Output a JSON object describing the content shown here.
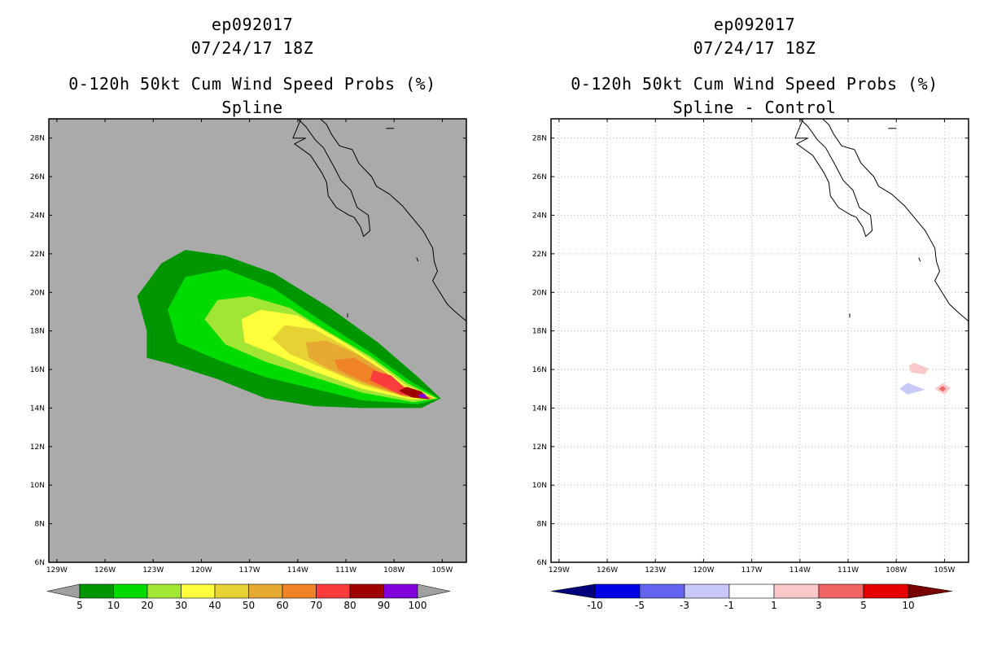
{
  "left": {
    "title1": "ep092017",
    "title2": "07/24/17 18Z",
    "title3": "0-120h 50kt Cum Wind Speed Probs (%)",
    "title4": "Spline"
  },
  "right": {
    "title1": "ep092017",
    "title2": "07/24/17 18Z",
    "title3": "0-120h 50kt Cum Wind Speed Probs (%)",
    "title4": "Spline - Control"
  },
  "colors": {
    "background_left": "#aaaaaa",
    "background_right": "#ffffff",
    "coast": "#000000"
  },
  "chart_data": [
    {
      "type": "heatmap",
      "title": "0-120h 50kt Cum Wind Speed Probs (%) — Spline",
      "x_ticks": [
        "129W",
        "126W",
        "123W",
        "120W",
        "117W",
        "114W",
        "111W",
        "108W",
        "105W"
      ],
      "x_tick_values": [
        -129,
        -126,
        -123,
        -120,
        -117,
        -114,
        -111,
        -108,
        -105
      ],
      "y_ticks": [
        "6N",
        "8N",
        "10N",
        "12N",
        "14N",
        "16N",
        "18N",
        "20N",
        "22N",
        "24N",
        "26N",
        "28N"
      ],
      "y_tick_values": [
        6,
        8,
        10,
        12,
        14,
        16,
        18,
        20,
        22,
        24,
        26,
        28
      ],
      "xlim": [
        -129.5,
        -103.5
      ],
      "ylim": [
        6,
        29
      ],
      "grid": false,
      "legend_levels": [
        "5",
        "10",
        "20",
        "30",
        "40",
        "50",
        "60",
        "70",
        "80",
        "90",
        "100"
      ],
      "legend_colors": [
        "#a0a0a0",
        "#009600",
        "#00dc00",
        "#a0e632",
        "#ffff3c",
        "#e6d232",
        "#e6aa32",
        "#f08228",
        "#fa3c3c",
        "#a00000",
        "#8200dc",
        "#a0a0a0"
      ],
      "swath_axis": [
        {
          "lon": -106.0,
          "lat": 14.6
        },
        {
          "lon": -109.0,
          "lat": 15.7
        },
        {
          "lon": -112.0,
          "lat": 16.9
        },
        {
          "lon": -115.0,
          "lat": 18.1
        },
        {
          "lon": -118.0,
          "lat": 18.9
        },
        {
          "lon": -121.5,
          "lat": 19.4
        }
      ],
      "contours": [
        {
          "level": 5,
          "color": "#009600",
          "poly": [
            [
              -105.1,
              14.5
            ],
            [
              -106.3,
              14.0
            ],
            [
              -110,
              14.0
            ],
            [
              -113,
              14.1
            ],
            [
              -116,
              14.5
            ],
            [
              -119,
              15.5
            ],
            [
              -122,
              16.3
            ],
            [
              -123.4,
              16.6
            ],
            [
              -123.4,
              18
            ],
            [
              -124,
              19.8
            ],
            [
              -122.5,
              21.5
            ],
            [
              -121,
              22.2
            ],
            [
              -118.5,
              21.9
            ],
            [
              -115.5,
              21.0
            ],
            [
              -112,
              19.2
            ],
            [
              -109,
              17.4
            ],
            [
              -106.5,
              15.6
            ]
          ]
        },
        {
          "level": 10,
          "color": "#00dc00",
          "poly": [
            [
              -105.2,
              14.5
            ],
            [
              -106.5,
              14.2
            ],
            [
              -110,
              14.4
            ],
            [
              -113,
              15.0
            ],
            [
              -116,
              15.6
            ],
            [
              -119,
              16.5
            ],
            [
              -121.5,
              17.4
            ],
            [
              -122.1,
              19.1
            ],
            [
              -121,
              20.8
            ],
            [
              -118.5,
              21.2
            ],
            [
              -115.5,
              20.2
            ],
            [
              -112.5,
              18.5
            ],
            [
              -109.5,
              16.9
            ],
            [
              -107,
              15.4
            ]
          ]
        },
        {
          "level": 20,
          "color": "#a0e632",
          "poly": [
            [
              -105.3,
              14.5
            ],
            [
              -106.8,
              14.3
            ],
            [
              -110,
              14.8
            ],
            [
              -113,
              15.6
            ],
            [
              -116,
              16.4
            ],
            [
              -118.5,
              17.3
            ],
            [
              -119.8,
              18.6
            ],
            [
              -119,
              19.6
            ],
            [
              -117,
              19.8
            ],
            [
              -114.5,
              19.2
            ],
            [
              -112,
              17.9
            ],
            [
              -109.5,
              16.7
            ],
            [
              -107.2,
              15.3
            ]
          ]
        },
        {
          "level": 30,
          "color": "#ffff3c",
          "poly": [
            [
              -105.4,
              14.5
            ],
            [
              -107,
              14.45
            ],
            [
              -110,
              15.0
            ],
            [
              -113,
              15.9
            ],
            [
              -115.5,
              16.8
            ],
            [
              -117.3,
              17.4
            ],
            [
              -117.5,
              18.6
            ],
            [
              -116.3,
              19.1
            ],
            [
              -114,
              18.8
            ],
            [
              -111.5,
              17.6
            ],
            [
              -109.2,
              16.4
            ],
            [
              -107.3,
              15.2
            ]
          ]
        },
        {
          "level": 40,
          "color": "#e6d232",
          "poly": [
            [
              -105.5,
              14.5
            ],
            [
              -107.2,
              14.55
            ],
            [
              -110,
              15.2
            ],
            [
              -112.5,
              16.1
            ],
            [
              -114.5,
              16.8
            ],
            [
              -115.6,
              17.6
            ],
            [
              -114.8,
              18.3
            ],
            [
              -113,
              18.1
            ],
            [
              -110.8,
              17.1
            ],
            [
              -108.8,
              16.0
            ],
            [
              -107.3,
              15.1
            ]
          ]
        },
        {
          "level": 50,
          "color": "#e6aa32",
          "poly": [
            [
              -105.5,
              14.5
            ],
            [
              -107.3,
              14.6
            ],
            [
              -110,
              15.3
            ],
            [
              -112,
              16.0
            ],
            [
              -113.3,
              16.6
            ],
            [
              -113.5,
              17.4
            ],
            [
              -112.2,
              17.5
            ],
            [
              -110.3,
              16.8
            ],
            [
              -108.6,
              15.9
            ],
            [
              -107.3,
              15.05
            ]
          ]
        },
        {
          "level": 60,
          "color": "#f08228",
          "poly": [
            [
              -105.6,
              14.5
            ],
            [
              -107.5,
              14.65
            ],
            [
              -110,
              15.4
            ],
            [
              -111.5,
              16.0
            ],
            [
              -111.7,
              16.5
            ],
            [
              -110.5,
              16.6
            ],
            [
              -109,
              15.9
            ],
            [
              -107.4,
              15.0
            ]
          ]
        },
        {
          "level": 70,
          "color": "#fa3c3c",
          "poly": [
            [
              -105.7,
              14.45
            ],
            [
              -107.6,
              14.7
            ],
            [
              -109.5,
              15.45
            ],
            [
              -109.3,
              15.95
            ],
            [
              -108.2,
              15.7
            ],
            [
              -107.4,
              15.1
            ],
            [
              -106.3,
              14.75
            ]
          ]
        },
        {
          "level": 80,
          "color": "#a00000",
          "poly": [
            [
              -105.8,
              14.45
            ],
            [
              -106.9,
              14.55
            ],
            [
              -107.7,
              14.9
            ],
            [
              -107.2,
              15.1
            ],
            [
              -106.3,
              14.85
            ]
          ]
        },
        {
          "level": 90,
          "color": "#8200dc",
          "poly": [
            [
              -105.9,
              14.5
            ],
            [
              -106.4,
              14.55
            ],
            [
              -106.5,
              14.7
            ],
            [
              -106.1,
              14.75
            ]
          ]
        }
      ]
    },
    {
      "type": "heatmap",
      "title": "0-120h 50kt Cum Wind Speed Probs (%) — Spline - Control",
      "x_ticks": [
        "129W",
        "126W",
        "123W",
        "120W",
        "117W",
        "114W",
        "111W",
        "108W",
        "105W"
      ],
      "x_tick_values": [
        -129,
        -126,
        -123,
        -120,
        -117,
        -114,
        -111,
        -108,
        -105
      ],
      "y_ticks": [
        "6N",
        "8N",
        "10N",
        "12N",
        "14N",
        "16N",
        "18N",
        "20N",
        "22N",
        "24N",
        "26N",
        "28N"
      ],
      "y_tick_values": [
        6,
        8,
        10,
        12,
        14,
        16,
        18,
        20,
        22,
        24,
        26,
        28
      ],
      "xlim": [
        -129.5,
        -103.5
      ],
      "ylim": [
        6,
        29
      ],
      "grid": true,
      "legend_levels": [
        "-10",
        "-5",
        "-3",
        "-1",
        "1",
        "3",
        "5",
        "10"
      ],
      "legend_colors": [
        "#00007a",
        "#0000e6",
        "#6464f0",
        "#c8c8fa",
        "#ffffff",
        "#fac8c8",
        "#f06464",
        "#e60000",
        "#7a0000"
      ],
      "contours": [
        {
          "level": 1,
          "color": "#fac8c8",
          "poly": [
            [
              -107.2,
              16.2
            ],
            [
              -106.9,
              16.35
            ],
            [
              -106.0,
              16.05
            ],
            [
              -106.2,
              15.75
            ],
            [
              -107.1,
              15.85
            ]
          ]
        },
        {
          "level": 1,
          "color": "#fac8c8",
          "poly": [
            [
              -105.1,
              15.3
            ],
            [
              -104.6,
              15.05
            ],
            [
              -105.0,
              14.7
            ],
            [
              -105.6,
              15.0
            ]
          ]
        },
        {
          "level": 3,
          "color": "#f06464",
          "poly": [
            [
              -105.1,
              15.15
            ],
            [
              -104.9,
              15.0
            ],
            [
              -105.1,
              14.85
            ],
            [
              -105.35,
              15.0
            ]
          ]
        },
        {
          "level": -1,
          "color": "#c8c8fa",
          "poly": [
            [
              -107.8,
              15.0
            ],
            [
              -107.3,
              15.3
            ],
            [
              -106.2,
              14.95
            ],
            [
              -107.3,
              14.7
            ]
          ]
        }
      ]
    }
  ],
  "coastline": [
    [
      [
        -110.5,
        23.9
      ],
      [
        -110.1,
        23.4
      ],
      [
        -109.9,
        22.9
      ],
      [
        -109.5,
        23.2
      ],
      [
        -109.6,
        24.0
      ],
      [
        -110.3,
        24.4
      ],
      [
        -110.7,
        25.3
      ],
      [
        -111.3,
        25.8
      ],
      [
        -111.8,
        26.6
      ],
      [
        -112.4,
        27.5
      ],
      [
        -112.9,
        27.9
      ],
      [
        -113.5,
        28.6
      ],
      [
        -114.0,
        29.0
      ]
    ],
    [
      [
        -113.8,
        29.0
      ],
      [
        -114.3,
        28.0
      ],
      [
        -113.5,
        28.0
      ],
      [
        -114.2,
        27.7
      ],
      [
        -113.2,
        27.1
      ],
      [
        -112.5,
        26.2
      ],
      [
        -112.2,
        25.7
      ],
      [
        -112.1,
        25.0
      ],
      [
        -111.6,
        24.4
      ],
      [
        -110.8,
        24.0
      ],
      [
        -110.5,
        23.9
      ]
    ],
    [
      [
        -112.6,
        29.0
      ],
      [
        -112.2,
        28.7
      ],
      [
        -111.9,
        28.2
      ],
      [
        -111.4,
        27.6
      ],
      [
        -110.6,
        27.4
      ],
      [
        -110.2,
        26.7
      ],
      [
        -109.4,
        26.0
      ],
      [
        -109.1,
        25.5
      ],
      [
        -108.3,
        25.1
      ],
      [
        -107.5,
        24.5
      ],
      [
        -106.8,
        23.8
      ],
      [
        -106.2,
        23.2
      ],
      [
        -105.6,
        22.3
      ],
      [
        -105.5,
        21.6
      ],
      [
        -105.3,
        21.1
      ],
      [
        -105.6,
        20.6
      ],
      [
        -105.3,
        20.2
      ],
      [
        -104.7,
        19.4
      ],
      [
        -104.2,
        19.0
      ],
      [
        -103.5,
        18.5
      ]
    ],
    [
      [
        -108.5,
        28.5
      ],
      [
        -108.0,
        28.5
      ]
    ],
    [
      [
        -110.9,
        18.7
      ],
      [
        -110.9,
        18.9
      ]
    ],
    [
      [
        -106.5,
        21.6
      ],
      [
        -106.6,
        21.8
      ]
    ]
  ]
}
